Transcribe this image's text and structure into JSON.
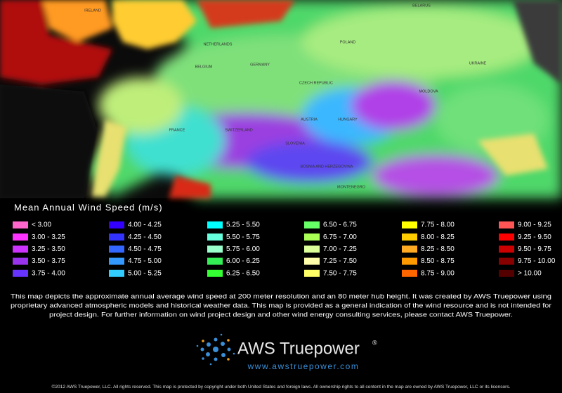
{
  "map": {
    "labels": [
      "IRELAND",
      "BELARUS",
      "NETHERLANDS",
      "POLAND",
      "GERMANY",
      "BELGIUM",
      "UKRAINE",
      "CZECH REPUBLIC",
      "MOLDOVA",
      "FRANCE",
      "AUSTRIA",
      "HUNGARY",
      "SWITZERLAND",
      "SLOVENIA",
      "BOSNIA AND HERZEGOVINA",
      "MONTENEGRO"
    ]
  },
  "legend": {
    "title": "Mean Annual Wind Speed (m/s)",
    "items": [
      {
        "label": "< 3.00",
        "color": "#ff66cc"
      },
      {
        "label": "3.00 - 3.25",
        "color": "#ff33ff"
      },
      {
        "label": "3.25 - 3.50",
        "color": "#cc33ff"
      },
      {
        "label": "3.50 - 3.75",
        "color": "#9933ee"
      },
      {
        "label": "3.75 - 4.00",
        "color": "#6633ff"
      },
      {
        "label": "4.00 - 4.25",
        "color": "#3300ff"
      },
      {
        "label": "4.25 - 4.50",
        "color": "#3333ff"
      },
      {
        "label": "4.50 - 4.75",
        "color": "#3366ff"
      },
      {
        "label": "4.75 - 5.00",
        "color": "#3399ff"
      },
      {
        "label": "5.00 - 5.25",
        "color": "#33ccff"
      },
      {
        "label": "5.25 - 5.50",
        "color": "#00ffff"
      },
      {
        "label": "5.50 - 5.75",
        "color": "#66ffdd"
      },
      {
        "label": "5.75 - 6.00",
        "color": "#99ffcc"
      },
      {
        "label": "6.00 - 6.25",
        "color": "#33ee55"
      },
      {
        "label": "6.25 - 6.50",
        "color": "#33ff33"
      },
      {
        "label": "6.50 - 6.75",
        "color": "#66ff66"
      },
      {
        "label": "6.75 - 7.00",
        "color": "#aaff55"
      },
      {
        "label": "7.00 - 7.25",
        "color": "#ddff99"
      },
      {
        "label": "7.25 - 7.50",
        "color": "#ffffaa"
      },
      {
        "label": "7.50 - 7.75",
        "color": "#ffff66"
      },
      {
        "label": "7.75 - 8.00",
        "color": "#ffff00"
      },
      {
        "label": "8.00 - 8.25",
        "color": "#ffcc00"
      },
      {
        "label": "8.25 - 8.50",
        "color": "#ffaa22"
      },
      {
        "label": "8.50 - 8.75",
        "color": "#ff9900"
      },
      {
        "label": "8.75 - 9.00",
        "color": "#ff6600"
      },
      {
        "label": "9.00 - 9.25",
        "color": "#ff5555"
      },
      {
        "label": "9.25 - 9.50",
        "color": "#ff0000"
      },
      {
        "label": "9.50 - 9.75",
        "color": "#cc0000"
      },
      {
        "label": "9.75 - 10.00",
        "color": "#880000"
      },
      {
        "label": "> 10.00",
        "color": "#550000"
      }
    ]
  },
  "description": [
    "This map depicts the approximate annual average wind speed at 200 meter resolution and an 80 meter hub height. It was created by AWS Truepower using",
    "proprietary advanced atmospheric models and historical weather data. This map is provided as a general indication of the wind resource and is not intended for",
    "project design. For further information on wind project design and other wind energy consulting services, please contact AWS Truepower."
  ],
  "logo": {
    "name": "AWS Truepower",
    "mark": "®",
    "url": "www.awstruepower.com"
  },
  "copyright": "©2012 AWS Truepower, LLC. All rights reserved. This map is protected by copyright under both United States and foreign laws. All ownership rights to all content in the map are owned by AWS Truepower, LLC or its licensors."
}
